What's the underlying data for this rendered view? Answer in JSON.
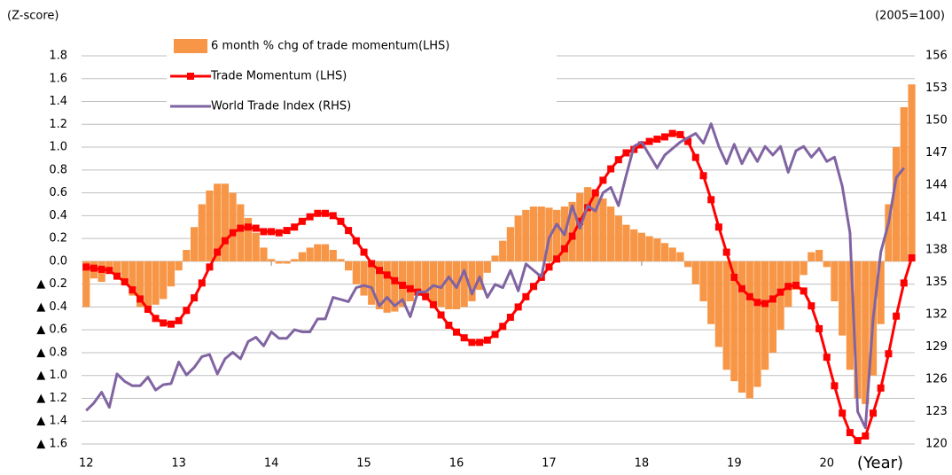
{
  "chart_data": {
    "type": "combo",
    "left_axis_label": "(Z-score)",
    "right_axis_label": "(2005=100)",
    "x_axis_label": "(Year)",
    "x": [
      12,
      12.083,
      12.167,
      12.25,
      12.333,
      12.417,
      12.5,
      12.583,
      12.667,
      12.75,
      12.833,
      12.917,
      13,
      13.083,
      13.167,
      13.25,
      13.333,
      13.417,
      13.5,
      13.583,
      13.667,
      13.75,
      13.833,
      13.917,
      14,
      14.083,
      14.167,
      14.25,
      14.333,
      14.417,
      14.5,
      14.583,
      14.667,
      14.75,
      14.833,
      14.917,
      15,
      15.083,
      15.167,
      15.25,
      15.333,
      15.417,
      15.5,
      15.583,
      15.667,
      15.75,
      15.833,
      15.917,
      16,
      16.083,
      16.167,
      16.25,
      16.333,
      16.417,
      16.5,
      16.583,
      16.667,
      16.75,
      16.833,
      16.917,
      17,
      17.083,
      17.167,
      17.25,
      17.333,
      17.417,
      17.5,
      17.583,
      17.667,
      17.75,
      17.833,
      17.917,
      18,
      18.083,
      18.167,
      18.25,
      18.333,
      18.417,
      18.5,
      18.583,
      18.667,
      18.75,
      18.833,
      18.917,
      19,
      19.083,
      19.167,
      19.25,
      19.333,
      19.417,
      19.5,
      19.583,
      19.667,
      19.75,
      19.833,
      19.917,
      20,
      20.083,
      20.167,
      20.25,
      20.333,
      20.417,
      20.5,
      20.583,
      20.667,
      20.75,
      20.833,
      20.917
    ],
    "series": [
      {
        "name": "6 month % chg of trade momentum(LHS)",
        "type": "bar",
        "color": "#f79646",
        "values": [
          -0.4,
          -0.15,
          -0.18,
          -0.08,
          -0.12,
          -0.2,
          -0.3,
          -0.4,
          -0.42,
          -0.38,
          -0.33,
          -0.22,
          -0.08,
          0.1,
          0.3,
          0.5,
          0.62,
          0.68,
          0.68,
          0.6,
          0.5,
          0.38,
          0.25,
          0.12,
          0.02,
          -0.02,
          -0.02,
          0.02,
          0.08,
          0.12,
          0.15,
          0.15,
          0.1,
          0.02,
          -0.08,
          -0.2,
          -0.3,
          -0.38,
          -0.42,
          -0.45,
          -0.44,
          -0.4,
          -0.35,
          -0.3,
          -0.32,
          -0.38,
          -0.4,
          -0.42,
          -0.42,
          -0.4,
          -0.35,
          -0.25,
          -0.1,
          0.05,
          0.18,
          0.3,
          0.4,
          0.45,
          0.48,
          0.48,
          0.47,
          0.45,
          0.48,
          0.52,
          0.6,
          0.65,
          0.62,
          0.55,
          0.48,
          0.4,
          0.32,
          0.28,
          0.25,
          0.22,
          0.2,
          0.16,
          0.12,
          0.08,
          -0.05,
          -0.2,
          -0.35,
          -0.55,
          -0.75,
          -0.95,
          -1.05,
          -1.15,
          -1.2,
          -1.1,
          -0.95,
          -0.8,
          -0.6,
          -0.4,
          -0.25,
          -0.12,
          0.08,
          0.1,
          -0.05,
          -0.35,
          -0.65,
          -0.95,
          -1.2,
          -1.25,
          -1.0,
          -0.55,
          0.5,
          1.0,
          1.35,
          1.55
        ]
      },
      {
        "name": "Trade Momentum (LHS)",
        "type": "line",
        "marker": true,
        "color": "#ff0000",
        "values": [
          -0.05,
          -0.06,
          -0.07,
          -0.08,
          -0.13,
          -0.18,
          -0.25,
          -0.33,
          -0.42,
          -0.5,
          -0.54,
          -0.55,
          -0.52,
          -0.43,
          -0.32,
          -0.19,
          -0.05,
          0.08,
          0.18,
          0.25,
          0.29,
          0.3,
          0.29,
          0.26,
          0.26,
          0.25,
          0.27,
          0.3,
          0.35,
          0.39,
          0.42,
          0.42,
          0.4,
          0.35,
          0.27,
          0.18,
          0.08,
          -0.02,
          -0.08,
          -0.12,
          -0.17,
          -0.21,
          -0.24,
          -0.27,
          -0.31,
          -0.38,
          -0.47,
          -0.56,
          -0.62,
          -0.67,
          -0.71,
          -0.71,
          -0.69,
          -0.64,
          -0.57,
          -0.49,
          -0.4,
          -0.31,
          -0.22,
          -0.14,
          -0.05,
          0.02,
          0.11,
          0.22,
          0.35,
          0.47,
          0.6,
          0.71,
          0.81,
          0.89,
          0.95,
          0.98,
          1.02,
          1.05,
          1.07,
          1.09,
          1.12,
          1.11,
          1.05,
          0.91,
          0.75,
          0.54,
          0.3,
          0.08,
          -0.14,
          -0.24,
          -0.31,
          -0.36,
          -0.37,
          -0.33,
          -0.27,
          -0.22,
          -0.21,
          -0.26,
          -0.39,
          -0.59,
          -0.84,
          -1.09,
          -1.33,
          -1.5,
          -1.57,
          -1.53,
          -1.33,
          -1.11,
          -0.81,
          -0.48,
          -0.19,
          0.03
        ]
      },
      {
        "name": "World Trade Index (RHS)",
        "type": "line",
        "axis": "y2",
        "color": "#8064a2",
        "values": [
          123.1,
          123.8,
          124.8,
          123.4,
          126.5,
          125.8,
          125.4,
          125.4,
          126.2,
          125.0,
          125.5,
          125.6,
          127.6,
          126.4,
          127.1,
          128.1,
          128.3,
          126.5,
          127.9,
          128.5,
          127.9,
          129.5,
          129.9,
          129.1,
          130.4,
          129.8,
          129.8,
          130.6,
          130.4,
          130.4,
          131.6,
          131.6,
          133.6,
          133.4,
          133.2,
          134.5,
          134.7,
          134.5,
          132.8,
          133.6,
          132.8,
          133.4,
          131.8,
          134.1,
          134.1,
          134.7,
          134.5,
          135.5,
          134.5,
          136.1,
          133.9,
          135.5,
          133.6,
          134.8,
          134.5,
          136.1,
          134.2,
          136.7,
          136.1,
          135.5,
          139.1,
          140.4,
          139.4,
          142.1,
          140.0,
          142.1,
          141.6,
          143.3,
          143.8,
          142.1,
          144.9,
          147.6,
          148.0,
          146.8,
          145.6,
          146.8,
          147.4,
          148.0,
          148.4,
          148.8,
          147.9,
          149.7,
          147.6,
          146.0,
          147.8,
          146.0,
          147.4,
          146.2,
          147.6,
          146.8,
          147.6,
          145.2,
          147.2,
          147.6,
          146.6,
          147.4,
          146.2,
          146.6,
          143.9,
          139.6,
          123.0,
          121.5,
          131.6,
          137.8,
          140.5,
          144.7,
          145.6,
          null
        ]
      }
    ],
    "xlim": [
      11.95,
      20.95
    ],
    "xticks": [
      12,
      13,
      14,
      15,
      16,
      17,
      18,
      19,
      20
    ],
    "ylim": [
      -1.6,
      1.8
    ],
    "yticks": [
      {
        "value": -1.6,
        "label": "▲ 1.6"
      },
      {
        "value": -1.4,
        "label": "▲ 1.4"
      },
      {
        "value": -1.2,
        "label": "▲ 1.2"
      },
      {
        "value": -1.0,
        "label": "▲ 1.0"
      },
      {
        "value": -0.8,
        "label": "▲ 0.8"
      },
      {
        "value": -0.6,
        "label": "▲ 0.6"
      },
      {
        "value": -0.4,
        "label": "▲ 0.4"
      },
      {
        "value": -0.2,
        "label": "▲ 0.2"
      },
      {
        "value": 0,
        "label": "0.0"
      },
      0.2,
      0.4,
      0.6,
      0.8,
      {
        "value": 1,
        "label": "1.0"
      },
      1.2,
      1.4,
      1.6,
      1.8
    ],
    "y2lim": [
      120,
      156
    ],
    "y2ticks": [
      120,
      123,
      126,
      129,
      132,
      135,
      138,
      141,
      144,
      147,
      150,
      153,
      156
    ],
    "grid": true,
    "legend": "top"
  }
}
